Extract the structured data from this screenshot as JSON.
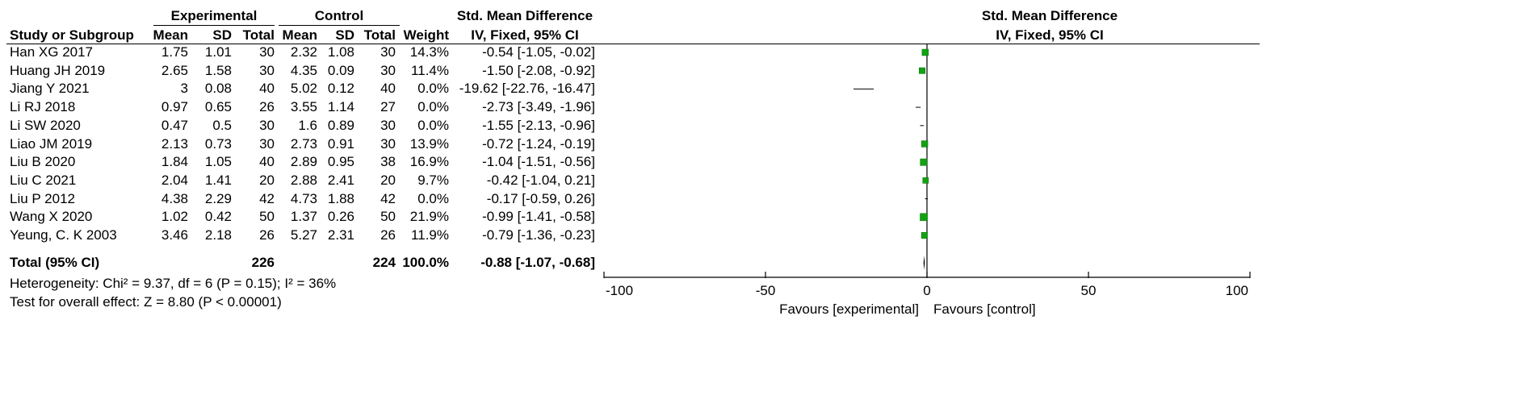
{
  "headers": {
    "experimental": "Experimental",
    "control": "Control",
    "smd_title": "Std. Mean Difference",
    "study": "Study or Subgroup",
    "mean": "Mean",
    "sd": "SD",
    "total": "Total",
    "weight": "Weight",
    "method": "IV, Fixed, 95% CI",
    "plot_title": "Std. Mean Difference",
    "plot_method": "IV, Fixed, 95% CI"
  },
  "studies": [
    {
      "name": "Han XG 2017",
      "e_mean": "1.75",
      "e_sd": "1.01",
      "e_total": "30",
      "c_mean": "2.32",
      "c_sd": "1.08",
      "c_total": "30",
      "weight": "14.3%",
      "ci": "-0.54 [-1.05, -0.02]"
    },
    {
      "name": "Huang JH 2019",
      "e_mean": "2.65",
      "e_sd": "1.58",
      "e_total": "30",
      "c_mean": "4.35",
      "c_sd": "0.09",
      "c_total": "30",
      "weight": "11.4%",
      "ci": "-1.50 [-2.08, -0.92]"
    },
    {
      "name": "Jiang Y 2021",
      "e_mean": "3",
      "e_sd": "0.08",
      "e_total": "40",
      "c_mean": "5.02",
      "c_sd": "0.12",
      "c_total": "40",
      "weight": "0.0%",
      "ci": "-19.62 [-22.76, -16.47]"
    },
    {
      "name": "Li RJ 2018",
      "e_mean": "0.97",
      "e_sd": "0.65",
      "e_total": "26",
      "c_mean": "3.55",
      "c_sd": "1.14",
      "c_total": "27",
      "weight": "0.0%",
      "ci": "-2.73 [-3.49, -1.96]"
    },
    {
      "name": "Li SW 2020",
      "e_mean": "0.47",
      "e_sd": "0.5",
      "e_total": "30",
      "c_mean": "1.6",
      "c_sd": "0.89",
      "c_total": "30",
      "weight": "0.0%",
      "ci": "-1.55 [-2.13, -0.96]"
    },
    {
      "name": "Liao JM 2019",
      "e_mean": "2.13",
      "e_sd": "0.73",
      "e_total": "30",
      "c_mean": "2.73",
      "c_sd": "0.91",
      "c_total": "30",
      "weight": "13.9%",
      "ci": "-0.72 [-1.24, -0.19]"
    },
    {
      "name": "Liu B 2020",
      "e_mean": "1.84",
      "e_sd": "1.05",
      "e_total": "40",
      "c_mean": "2.89",
      "c_sd": "0.95",
      "c_total": "38",
      "weight": "16.9%",
      "ci": "-1.04 [-1.51, -0.56]"
    },
    {
      "name": "Liu C 2021",
      "e_mean": "2.04",
      "e_sd": "1.41",
      "e_total": "20",
      "c_mean": "2.88",
      "c_sd": "2.41",
      "c_total": "20",
      "weight": "9.7%",
      "ci": "-0.42 [-1.04, 0.21]"
    },
    {
      "name": "Liu P 2012",
      "e_mean": "4.38",
      "e_sd": "2.29",
      "e_total": "42",
      "c_mean": "4.73",
      "c_sd": "1.88",
      "c_total": "42",
      "weight": "0.0%",
      "ci": "-0.17 [-0.59, 0.26]"
    },
    {
      "name": "Wang X 2020",
      "e_mean": "1.02",
      "e_sd": "0.42",
      "e_total": "50",
      "c_mean": "1.37",
      "c_sd": "0.26",
      "c_total": "50",
      "weight": "21.9%",
      "ci": "-0.99 [-1.41, -0.58]"
    },
    {
      "name": "Yeung, C. K 2003",
      "e_mean": "3.46",
      "e_sd": "2.18",
      "e_total": "26",
      "c_mean": "5.27",
      "c_sd": "2.31",
      "c_total": "26",
      "weight": "11.9%",
      "ci": "-0.79 [-1.36, -0.23]"
    }
  ],
  "total": {
    "label": "Total (95% CI)",
    "e_total": "226",
    "c_total": "224",
    "weight": "100.0%",
    "ci": "-0.88 [-1.07, -0.68]"
  },
  "heterogeneity": "Heterogeneity: Chi² = 9.37, df = 6 (P = 0.15); I² = 36%",
  "overall_effect": "Test for overall effect: Z = 8.80 (P < 0.00001)",
  "favours_left": "Favours [experimental]",
  "favours_right": "Favours [control]",
  "colors": {
    "marker": "#12a312",
    "diamond": "#000000"
  },
  "chart_data": {
    "type": "forest",
    "xlim": [
      -100,
      100
    ],
    "xticks": [
      -100,
      -50,
      0,
      50,
      100
    ],
    "xtick_labels": [
      "-100",
      "-50",
      "0",
      "50",
      "100"
    ],
    "points": [
      {
        "study": "Han XG 2017",
        "smd": -0.54,
        "lo": -1.05,
        "hi": -0.02,
        "weight": 14.3
      },
      {
        "study": "Huang JH 2019",
        "smd": -1.5,
        "lo": -2.08,
        "hi": -0.92,
        "weight": 11.4
      },
      {
        "study": "Jiang Y 2021",
        "smd": -19.62,
        "lo": -22.76,
        "hi": -16.47,
        "weight": 0.0
      },
      {
        "study": "Li RJ 2018",
        "smd": -2.73,
        "lo": -3.49,
        "hi": -1.96,
        "weight": 0.0
      },
      {
        "study": "Li SW 2020",
        "smd": -1.55,
        "lo": -2.13,
        "hi": -0.96,
        "weight": 0.0
      },
      {
        "study": "Liao JM 2019",
        "smd": -0.72,
        "lo": -1.24,
        "hi": -0.19,
        "weight": 13.9
      },
      {
        "study": "Liu B 2020",
        "smd": -1.04,
        "lo": -1.51,
        "hi": -0.56,
        "weight": 16.9
      },
      {
        "study": "Liu C 2021",
        "smd": -0.42,
        "lo": -1.04,
        "hi": 0.21,
        "weight": 9.7
      },
      {
        "study": "Liu P 2012",
        "smd": -0.17,
        "lo": -0.59,
        "hi": 0.26,
        "weight": 0.0
      },
      {
        "study": "Wang X 2020",
        "smd": -0.99,
        "lo": -1.41,
        "hi": -0.58,
        "weight": 21.9
      },
      {
        "study": "Yeung, C. K 2003",
        "smd": -0.79,
        "lo": -1.36,
        "hi": -0.23,
        "weight": 11.9
      }
    ],
    "summary": {
      "smd": -0.88,
      "lo": -1.07,
      "hi": -0.68
    }
  }
}
